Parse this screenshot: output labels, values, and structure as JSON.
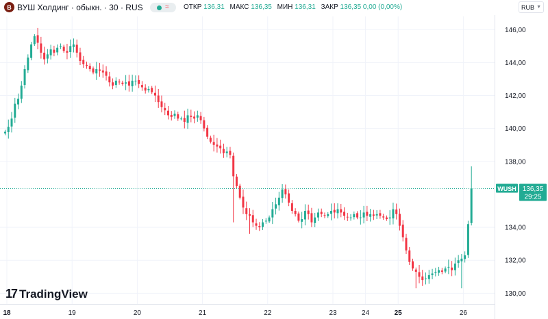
{
  "header": {
    "logo_text": "В",
    "title": "ВУШ Холдинг · обыкн. · 30 · RUS",
    "status_icon": "≈",
    "ohlc": [
      {
        "label": "ОТКР",
        "value": "136,31"
      },
      {
        "label": "МАКС",
        "value": "136,35"
      },
      {
        "label": "МИН",
        "value": "136,31"
      },
      {
        "label": "ЗАКР",
        "value": "136,35 0,00 (0,00%)"
      }
    ],
    "currency": "RUB"
  },
  "last_price": {
    "ticker": "WUSH",
    "price": "136,35",
    "countdown": "29:25",
    "value": 136.35
  },
  "footer": {
    "brand": "TradingView"
  },
  "colors": {
    "up": "#22ab94",
    "down": "#f23645",
    "grid": "#f0f3fa",
    "axis_text": "#131722"
  },
  "chart_data": {
    "type": "candlestick",
    "ylim": [
      129.6,
      146.8
    ],
    "y_ticks": [
      {
        "value": 146,
        "label": "146,00"
      },
      {
        "value": 144,
        "label": "144,00"
      },
      {
        "value": 142,
        "label": "142,00"
      },
      {
        "value": 140,
        "label": "140,00"
      },
      {
        "value": 138,
        "label": "138,00"
      },
      {
        "value": 134,
        "label": "134,00"
      },
      {
        "value": 132,
        "label": "132,00"
      },
      {
        "value": 130,
        "label": "130,00"
      }
    ],
    "x_ticks": [
      {
        "index": 0,
        "label": "18",
        "bold": true
      },
      {
        "index": 20,
        "label": "19",
        "bold": false
      },
      {
        "index": 40,
        "label": "20",
        "bold": false
      },
      {
        "index": 60,
        "label": "21",
        "bold": false
      },
      {
        "index": 80,
        "label": "22",
        "bold": false
      },
      {
        "index": 100,
        "label": "23",
        "bold": false
      },
      {
        "index": 110,
        "label": "24",
        "bold": false
      },
      {
        "index": 120,
        "label": "25",
        "bold": true
      },
      {
        "index": 140,
        "label": "26",
        "bold": false
      }
    ],
    "close": [
      139.8,
      140.1,
      140.6,
      141.5,
      141.8,
      142.6,
      143.6,
      144.3,
      145.1,
      145.6,
      145.2,
      144.6,
      144.2,
      144.5,
      144.8,
      144.6,
      144.9,
      145.0,
      144.7,
      144.6,
      145.0,
      145.1,
      144.6,
      144.1,
      143.9,
      143.8,
      143.6,
      143.4,
      143.6,
      143.5,
      143.4,
      143.2,
      142.8,
      142.6,
      142.9,
      142.8,
      142.7,
      142.8,
      142.6,
      142.9,
      142.9,
      142.7,
      142.5,
      142.3,
      142.4,
      142.2,
      142.0,
      141.6,
      141.3,
      141.1,
      140.8,
      140.7,
      140.9,
      140.6,
      140.6,
      140.4,
      140.8,
      140.7,
      140.6,
      140.8,
      140.5,
      140.0,
      139.5,
      139.2,
      139.0,
      138.9,
      138.8,
      138.5,
      138.6,
      138.4,
      137.1,
      136.5,
      135.8,
      135.2,
      134.8,
      134.7,
      134.3,
      134.1,
      134.0,
      134.3,
      134.4,
      134.6,
      135.1,
      135.4,
      135.8,
      136.3,
      136.0,
      135.5,
      135.0,
      134.8,
      134.4,
      134.5,
      135.0,
      134.8,
      134.3,
      134.6,
      134.9,
      134.8,
      134.7,
      134.8,
      135.0,
      134.9,
      135.1,
      134.9,
      134.7,
      134.6,
      134.6,
      134.8,
      134.6,
      134.6,
      134.9,
      134.7,
      134.8,
      134.7,
      134.8,
      134.7,
      134.6,
      134.5,
      134.6,
      135.1,
      134.8,
      134.1,
      133.4,
      132.6,
      131.9,
      131.5,
      131.3,
      131.0,
      130.8,
      130.9,
      131.1,
      131.2,
      131.3,
      131.4,
      131.3,
      131.5,
      131.6,
      131.4,
      131.8,
      132.0,
      132.1,
      132.3,
      134.2,
      136.35
    ]
  }
}
